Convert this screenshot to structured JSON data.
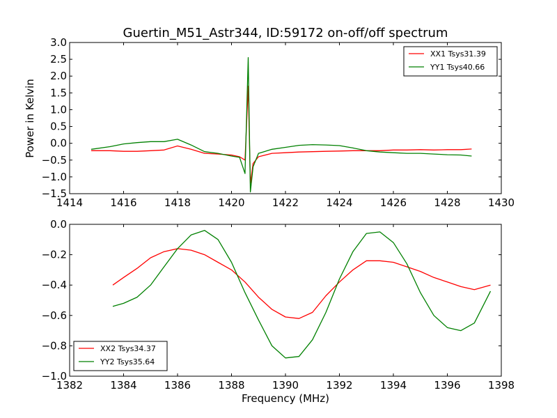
{
  "figure": {
    "title": "Guertin_M51_Astr344, ID:59172 on-off/off spectrum"
  },
  "chart_data": [
    {
      "type": "line",
      "ylabel": "Power in Kelvin",
      "xlabel": "",
      "xlim": [
        1414,
        1430
      ],
      "ylim": [
        -1.5,
        3.0
      ],
      "xticks": [
        1414,
        1416,
        1418,
        1420,
        1422,
        1424,
        1426,
        1428,
        1430
      ],
      "yticks": [
        -1.5,
        -1.0,
        -0.5,
        0.0,
        0.5,
        1.0,
        1.5,
        2.0,
        2.5,
        3.0
      ],
      "grid": false,
      "legend_position": "top-right",
      "series": [
        {
          "name": "XX1 Tsys31.39",
          "color": "#ff0000",
          "x": [
            1414.8,
            1415.5,
            1416.0,
            1416.5,
            1417.0,
            1417.5,
            1418.0,
            1418.5,
            1419.0,
            1419.5,
            1420.0,
            1420.3,
            1420.5,
            1420.62,
            1420.7,
            1420.8,
            1421.0,
            1421.5,
            1422.0,
            1422.5,
            1423.0,
            1423.5,
            1424.0,
            1424.5,
            1425.0,
            1425.5,
            1426.0,
            1426.5,
            1427.0,
            1427.5,
            1428.0,
            1428.5,
            1428.9
          ],
          "y": [
            -0.22,
            -0.22,
            -0.24,
            -0.24,
            -0.22,
            -0.2,
            -0.08,
            -0.18,
            -0.3,
            -0.32,
            -0.35,
            -0.4,
            -0.5,
            1.7,
            -1.2,
            -0.6,
            -0.4,
            -0.3,
            -0.28,
            -0.26,
            -0.25,
            -0.24,
            -0.23,
            -0.22,
            -0.22,
            -0.22,
            -0.2,
            -0.2,
            -0.19,
            -0.2,
            -0.19,
            -0.19,
            -0.17
          ]
        },
        {
          "name": "YY1 Tsys40.66",
          "color": "#008000",
          "x": [
            1414.8,
            1415.5,
            1416.0,
            1416.5,
            1417.0,
            1417.5,
            1418.0,
            1418.5,
            1419.0,
            1419.5,
            1420.0,
            1420.3,
            1420.5,
            1420.62,
            1420.7,
            1420.8,
            1421.0,
            1421.5,
            1422.0,
            1422.5,
            1423.0,
            1423.5,
            1424.0,
            1424.5,
            1425.0,
            1425.5,
            1426.0,
            1426.5,
            1427.0,
            1427.5,
            1428.0,
            1428.5,
            1428.9
          ],
          "y": [
            -0.18,
            -0.1,
            -0.02,
            0.02,
            0.05,
            0.05,
            0.12,
            -0.05,
            -0.25,
            -0.3,
            -0.38,
            -0.42,
            -0.9,
            2.55,
            -1.45,
            -0.7,
            -0.3,
            -0.18,
            -0.12,
            -0.06,
            -0.04,
            -0.05,
            -0.07,
            -0.14,
            -0.22,
            -0.26,
            -0.28,
            -0.3,
            -0.3,
            -0.32,
            -0.34,
            -0.35,
            -0.38
          ]
        }
      ]
    },
    {
      "type": "line",
      "ylabel": "",
      "xlabel": "Frequency (MHz)",
      "xlim": [
        1382,
        1398
      ],
      "ylim": [
        -1.0,
        0.0
      ],
      "xticks": [
        1382,
        1384,
        1386,
        1388,
        1390,
        1392,
        1394,
        1396,
        1398
      ],
      "yticks": [
        -1.0,
        -0.8,
        -0.6,
        -0.4,
        -0.2,
        0.0
      ],
      "grid": false,
      "legend_position": "bottom-left",
      "series": [
        {
          "name": "XX2 Tsys34.37",
          "color": "#ff0000",
          "x": [
            1383.6,
            1384.0,
            1384.5,
            1385.0,
            1385.5,
            1386.0,
            1386.5,
            1387.0,
            1387.5,
            1388.0,
            1388.5,
            1389.0,
            1389.5,
            1390.0,
            1390.5,
            1391.0,
            1391.5,
            1392.0,
            1392.5,
            1393.0,
            1393.5,
            1394.0,
            1394.5,
            1395.0,
            1395.5,
            1396.0,
            1396.5,
            1397.0,
            1397.6
          ],
          "y": [
            -0.4,
            -0.35,
            -0.29,
            -0.22,
            -0.18,
            -0.16,
            -0.17,
            -0.2,
            -0.25,
            -0.3,
            -0.38,
            -0.48,
            -0.56,
            -0.61,
            -0.62,
            -0.58,
            -0.47,
            -0.38,
            -0.3,
            -0.24,
            -0.24,
            -0.25,
            -0.28,
            -0.31,
            -0.35,
            -0.38,
            -0.41,
            -0.43,
            -0.4
          ]
        },
        {
          "name": "YY2 Tsys35.64",
          "color": "#008000",
          "x": [
            1383.6,
            1384.0,
            1384.5,
            1385.0,
            1385.5,
            1386.0,
            1386.5,
            1387.0,
            1387.5,
            1388.0,
            1388.5,
            1389.0,
            1389.5,
            1390.0,
            1390.5,
            1391.0,
            1391.5,
            1392.0,
            1392.5,
            1393.0,
            1393.5,
            1394.0,
            1394.5,
            1395.0,
            1395.5,
            1396.0,
            1396.5,
            1397.0,
            1397.6
          ],
          "y": [
            -0.54,
            -0.52,
            -0.48,
            -0.4,
            -0.28,
            -0.16,
            -0.07,
            -0.04,
            -0.1,
            -0.25,
            -0.45,
            -0.63,
            -0.8,
            -0.88,
            -0.87,
            -0.76,
            -0.58,
            -0.36,
            -0.18,
            -0.06,
            -0.05,
            -0.12,
            -0.26,
            -0.45,
            -0.6,
            -0.68,
            -0.7,
            -0.65,
            -0.44
          ]
        }
      ]
    }
  ]
}
